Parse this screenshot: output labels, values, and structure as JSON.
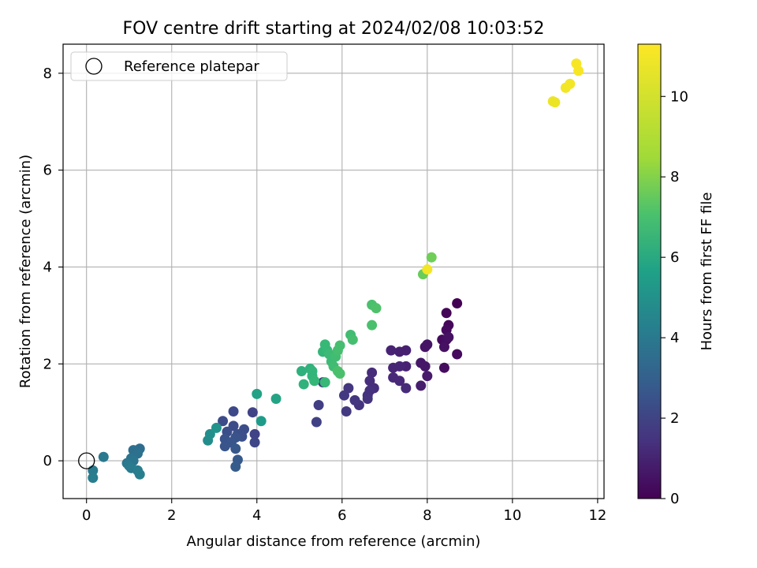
{
  "chart_data": {
    "type": "scatter",
    "title": "FOV centre drift starting at 2024/02/08 10:03:52",
    "xlabel": "Angular distance from reference (arcmin)",
    "ylabel": "Rotation from reference (arcmin)",
    "xlim": [
      -0.55,
      12.15
    ],
    "ylim": [
      -0.78,
      8.6
    ],
    "xticks": [
      0,
      2,
      4,
      6,
      8,
      10,
      12
    ],
    "yticks": [
      0,
      2,
      4,
      6,
      8
    ],
    "grid": true,
    "legend": {
      "position": "upper-left",
      "entries": [
        "Reference platepar"
      ]
    },
    "reference_point": {
      "x": 0,
      "y": 0
    },
    "colorbar": {
      "label": "Hours from first FF file",
      "colormap": "viridis",
      "range": [
        0,
        11.3
      ],
      "ticks": [
        0,
        2,
        4,
        6,
        8,
        10
      ]
    },
    "points": [
      [
        8.7,
        3.25,
        0.0
      ],
      [
        8.45,
        3.05,
        0.1
      ],
      [
        8.5,
        2.8,
        0.2
      ],
      [
        8.45,
        2.7,
        0.3
      ],
      [
        8.35,
        2.5,
        0.3
      ],
      [
        8.45,
        2.5,
        0.4
      ],
      [
        8.5,
        2.55,
        0.5
      ],
      [
        8.4,
        2.35,
        0.5
      ],
      [
        8.7,
        2.2,
        0.3
      ],
      [
        8.4,
        1.92,
        0.4
      ],
      [
        8.0,
        2.4,
        0.6
      ],
      [
        7.95,
        2.35,
        0.6
      ],
      [
        7.85,
        2.02,
        0.7
      ],
      [
        7.95,
        1.95,
        0.7
      ],
      [
        8.0,
        1.75,
        0.8
      ],
      [
        7.85,
        1.55,
        0.9
      ],
      [
        7.5,
        2.28,
        1.0
      ],
      [
        7.35,
        2.25,
        1.0
      ],
      [
        7.15,
        2.28,
        1.1
      ],
      [
        7.5,
        1.95,
        1.1
      ],
      [
        7.35,
        1.95,
        1.2
      ],
      [
        7.2,
        1.92,
        1.2
      ],
      [
        7.2,
        1.72,
        1.3
      ],
      [
        7.35,
        1.65,
        1.3
      ],
      [
        7.5,
        1.5,
        1.4
      ],
      [
        6.7,
        1.82,
        1.4
      ],
      [
        6.65,
        1.65,
        1.5
      ],
      [
        6.75,
        1.5,
        1.5
      ],
      [
        6.65,
        1.45,
        1.6
      ],
      [
        6.6,
        1.35,
        1.6
      ],
      [
        6.6,
        1.28,
        1.7
      ],
      [
        6.4,
        1.15,
        1.7
      ],
      [
        6.3,
        1.25,
        1.8
      ],
      [
        6.15,
        1.5,
        1.8
      ],
      [
        6.05,
        1.35,
        1.9
      ],
      [
        6.1,
        1.02,
        1.9
      ],
      [
        5.55,
        1.62,
        2.0
      ],
      [
        5.45,
        1.15,
        2.1
      ],
      [
        5.4,
        0.8,
        2.2
      ],
      [
        3.9,
        1.0,
        2.3
      ],
      [
        3.95,
        0.55,
        2.3
      ],
      [
        3.95,
        0.38,
        2.4
      ],
      [
        3.45,
        1.02,
        2.5
      ],
      [
        3.2,
        0.82,
        2.6
      ],
      [
        3.45,
        0.72,
        2.6
      ],
      [
        3.7,
        0.65,
        2.7
      ],
      [
        3.3,
        0.6,
        2.7
      ],
      [
        3.55,
        0.55,
        2.8
      ],
      [
        3.65,
        0.5,
        2.8
      ],
      [
        3.5,
        0.48,
        2.9
      ],
      [
        3.25,
        0.45,
        2.9
      ],
      [
        3.4,
        0.38,
        3.0
      ],
      [
        3.25,
        0.3,
        3.0
      ],
      [
        3.5,
        0.25,
        3.1
      ],
      [
        3.55,
        0.02,
        3.2
      ],
      [
        3.5,
        -0.12,
        3.3
      ],
      [
        1.25,
        0.25,
        4.0
      ],
      [
        1.1,
        0.22,
        4.1
      ],
      [
        1.2,
        0.15,
        4.2
      ],
      [
        1.05,
        0.05,
        4.3
      ],
      [
        1.1,
        0.0,
        4.4
      ],
      [
        0.95,
        -0.05,
        4.5
      ],
      [
        1.0,
        -0.1,
        4.6
      ],
      [
        1.05,
        -0.15,
        4.7
      ],
      [
        1.2,
        -0.2,
        4.8
      ],
      [
        1.25,
        -0.28,
        4.9
      ],
      [
        0.4,
        0.08,
        4.6
      ],
      [
        0.15,
        -0.2,
        4.7
      ],
      [
        0.15,
        -0.35,
        4.8
      ],
      [
        2.85,
        0.42,
        5.5
      ],
      [
        2.9,
        0.55,
        5.6
      ],
      [
        3.05,
        0.68,
        5.8
      ],
      [
        4.1,
        0.82,
        6.2
      ],
      [
        4.0,
        1.38,
        6.5
      ],
      [
        4.45,
        1.28,
        6.6
      ],
      [
        5.05,
        1.85,
        7.2
      ],
      [
        5.1,
        1.58,
        7.3
      ],
      [
        5.25,
        1.9,
        7.3
      ],
      [
        5.3,
        1.85,
        7.4
      ],
      [
        5.3,
        1.75,
        7.4
      ],
      [
        5.35,
        1.65,
        7.5
      ],
      [
        5.55,
        2.25,
        7.5
      ],
      [
        5.6,
        2.4,
        7.6
      ],
      [
        5.65,
        2.28,
        7.6
      ],
      [
        5.7,
        2.2,
        7.7
      ],
      [
        5.75,
        2.05,
        7.7
      ],
      [
        5.8,
        1.95,
        7.8
      ],
      [
        5.85,
        2.15,
        7.8
      ],
      [
        5.9,
        2.28,
        7.9
      ],
      [
        5.95,
        2.38,
        7.9
      ],
      [
        5.9,
        1.85,
        8.0
      ],
      [
        5.95,
        1.8,
        8.0
      ],
      [
        5.6,
        1.62,
        7.6
      ],
      [
        6.2,
        2.6,
        7.8
      ],
      [
        6.25,
        2.5,
        7.9
      ],
      [
        6.7,
        3.22,
        8.0
      ],
      [
        6.8,
        3.15,
        8.1
      ],
      [
        6.7,
        2.8,
        8.0
      ],
      [
        7.9,
        3.85,
        8.7
      ],
      [
        8.1,
        4.2,
        8.8
      ],
      [
        8.0,
        3.95,
        11.1
      ],
      [
        11.0,
        7.4,
        11.0
      ],
      [
        10.95,
        7.42,
        11.0
      ],
      [
        11.25,
        7.7,
        11.1
      ],
      [
        11.35,
        7.78,
        11.1
      ],
      [
        11.5,
        8.2,
        11.2
      ],
      [
        11.55,
        8.05,
        11.2
      ]
    ]
  }
}
